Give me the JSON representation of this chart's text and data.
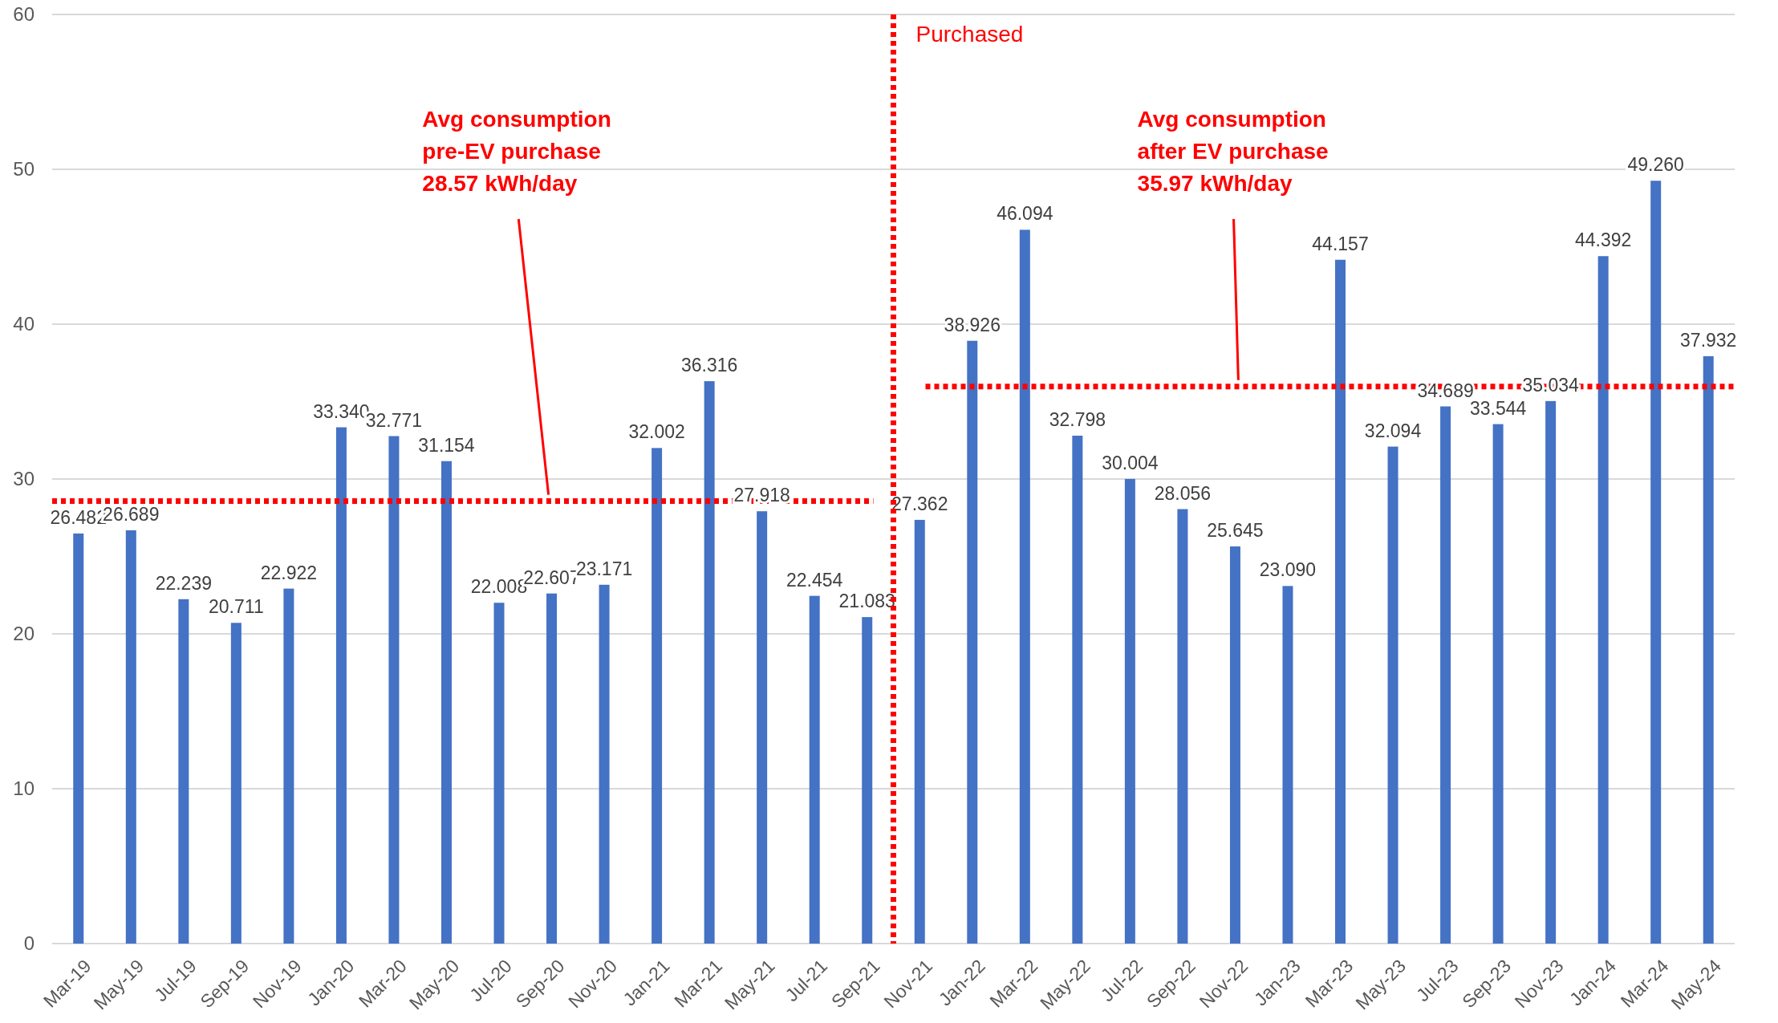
{
  "chart_data": {
    "type": "bar",
    "categories": [
      "Mar-19",
      "May-19",
      "Jul-19",
      "Sep-19",
      "Nov-19",
      "Jan-20",
      "Mar-20",
      "May-20",
      "Jul-20",
      "Sep-20",
      "Nov-20",
      "Jan-21",
      "Mar-21",
      "May-21",
      "Jul-21",
      "Sep-21",
      "Nov-21",
      "Jan-22",
      "Mar-22",
      "May-22",
      "Jul-22",
      "Sep-22",
      "Nov-22",
      "Jan-23",
      "Mar-23",
      "May-23",
      "Jul-23",
      "Sep-23",
      "Nov-23",
      "Jan-24",
      "Mar-24",
      "May-24"
    ],
    "values": [
      26.482,
      26.689,
      22.239,
      20.711,
      22.922,
      33.34,
      32.771,
      31.154,
      22.008,
      22.607,
      23.171,
      32.002,
      36.316,
      27.918,
      22.454,
      21.083,
      27.362,
      38.926,
      46.094,
      32.798,
      30.004,
      28.056,
      25.645,
      23.09,
      44.157,
      32.094,
      34.689,
      33.544,
      35.034,
      44.392,
      49.26,
      37.932
    ],
    "value_labels": [
      "26.482",
      "26.689",
      "22.239",
      "20.711",
      "22.922",
      "33.340",
      "32.771",
      "31.154",
      "22.008",
      "22.607",
      "23.171",
      "32.002",
      "36.316",
      "27.918",
      "22.454",
      "21.083",
      "27.362",
      "38.926",
      "46.094",
      "32.798",
      "30.004",
      "28.056",
      "25.645",
      "23.090",
      "44.157",
      "32.094",
      "34.689",
      "33.544",
      "35.034",
      "44.392",
      "49.260",
      "37.932"
    ],
    "color": "#4472c4",
    "ylim": [
      0,
      60
    ],
    "yticks": [
      0,
      10,
      20,
      30,
      40,
      50,
      60
    ],
    "grid": "y",
    "ref_lines": [
      {
        "axis": "x",
        "value": "Nov-21",
        "label": "Purchased",
        "color": "#ff0000",
        "line_style": "dotted"
      },
      {
        "axis": "y",
        "value": 28.57,
        "label": "Avg consumption\npre-EV purchase\n28.57 kWh/day",
        "color": "#ff0000",
        "line_style": "dotted"
      },
      {
        "axis": "y",
        "value": 35.97,
        "label": "Avg consumption\nafter EV purchase\n35.97 kWh/day",
        "color": "#ff0000",
        "line_style": "dotted"
      }
    ]
  }
}
